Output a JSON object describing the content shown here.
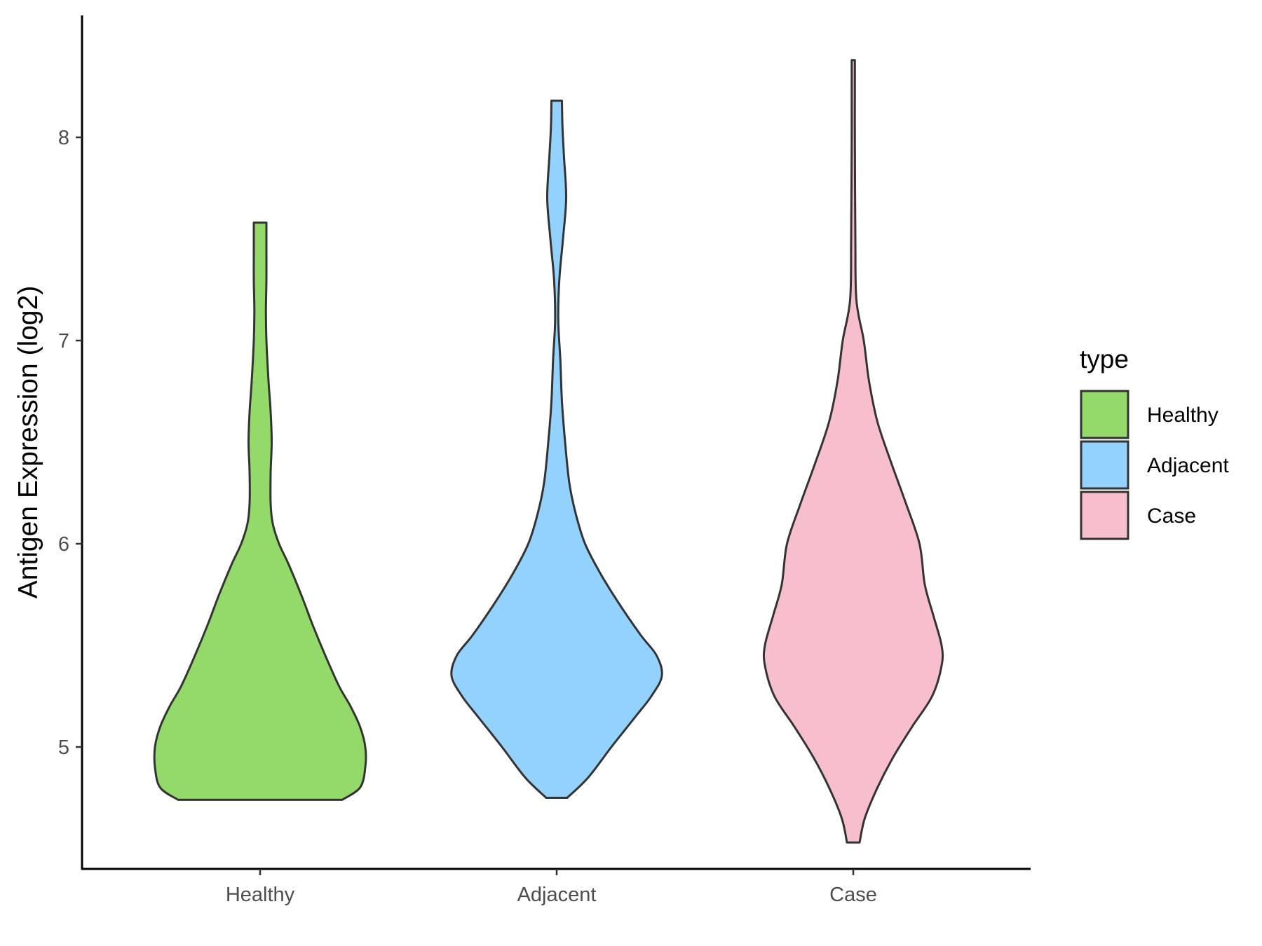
{
  "chart_data": {
    "type": "violin",
    "title": "",
    "xlabel": "",
    "ylabel": "Antigen Expression (log2)",
    "categories": [
      "Healthy",
      "Adjacent",
      "Case"
    ],
    "ylim": [
      4.4,
      8.6
    ],
    "yticks": [
      5,
      6,
      7,
      8
    ],
    "grid": false,
    "legend": {
      "title": "type",
      "position": "right",
      "entries": [
        "Healthy",
        "Adjacent",
        "Case"
      ]
    },
    "colors": {
      "Healthy": "#93DA6A",
      "Adjacent": "#93D2FD",
      "Case": "#F7BFCB",
      "outline": "#333333"
    },
    "series": [
      {
        "category": "Healthy",
        "min": 4.74,
        "max": 7.58,
        "density": [
          [
            4.74,
            0.78
          ],
          [
            4.8,
            0.95
          ],
          [
            4.9,
            1.0
          ],
          [
            5.0,
            1.0
          ],
          [
            5.1,
            0.95
          ],
          [
            5.2,
            0.86
          ],
          [
            5.3,
            0.75
          ],
          [
            5.45,
            0.62
          ],
          [
            5.6,
            0.5
          ],
          [
            5.75,
            0.39
          ],
          [
            5.9,
            0.27
          ],
          [
            6.0,
            0.18
          ],
          [
            6.1,
            0.12
          ],
          [
            6.2,
            0.1
          ],
          [
            6.35,
            0.1
          ],
          [
            6.5,
            0.11
          ],
          [
            6.65,
            0.1
          ],
          [
            6.8,
            0.08
          ],
          [
            7.0,
            0.06
          ],
          [
            7.15,
            0.055
          ],
          [
            7.3,
            0.06
          ],
          [
            7.45,
            0.06
          ],
          [
            7.58,
            0.06
          ]
        ]
      },
      {
        "category": "Adjacent",
        "min": 4.75,
        "max": 8.18,
        "density": [
          [
            4.75,
            0.1
          ],
          [
            4.85,
            0.3
          ],
          [
            5.0,
            0.52
          ],
          [
            5.15,
            0.75
          ],
          [
            5.25,
            0.9
          ],
          [
            5.35,
            1.0
          ],
          [
            5.45,
            0.95
          ],
          [
            5.55,
            0.8
          ],
          [
            5.7,
            0.6
          ],
          [
            5.85,
            0.42
          ],
          [
            6.0,
            0.27
          ],
          [
            6.15,
            0.18
          ],
          [
            6.3,
            0.12
          ],
          [
            6.5,
            0.08
          ],
          [
            6.7,
            0.05
          ],
          [
            6.9,
            0.035
          ],
          [
            7.1,
            0.015
          ],
          [
            7.3,
            0.025
          ],
          [
            7.5,
            0.06
          ],
          [
            7.7,
            0.09
          ],
          [
            7.9,
            0.07
          ],
          [
            8.05,
            0.055
          ],
          [
            8.18,
            0.05
          ]
        ]
      },
      {
        "category": "Case",
        "min": 4.53,
        "max": 8.38,
        "density": [
          [
            4.53,
            0.06
          ],
          [
            4.65,
            0.11
          ],
          [
            4.8,
            0.23
          ],
          [
            4.95,
            0.38
          ],
          [
            5.1,
            0.56
          ],
          [
            5.25,
            0.75
          ],
          [
            5.4,
            0.84
          ],
          [
            5.5,
            0.84
          ],
          [
            5.65,
            0.76
          ],
          [
            5.8,
            0.68
          ],
          [
            6.0,
            0.63
          ],
          [
            6.2,
            0.5
          ],
          [
            6.4,
            0.36
          ],
          [
            6.6,
            0.23
          ],
          [
            6.8,
            0.15
          ],
          [
            7.0,
            0.1
          ],
          [
            7.2,
            0.03
          ],
          [
            7.5,
            0.02
          ],
          [
            8.0,
            0.015
          ],
          [
            8.38,
            0.015
          ]
        ]
      }
    ]
  }
}
